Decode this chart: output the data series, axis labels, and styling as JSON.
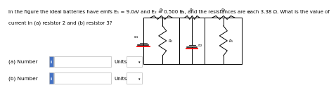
{
  "title_line1": "In the figure the ideal batteries have emfs E₁ = 9.0 V and E₂ = 0.500 E₁, and the resistances are each 3.38 Ω. What is the value of",
  "title_line2": "current in (a) resistor 2 and (b) resistor 3?",
  "label_a": "(a) Number",
  "label_b": "(b) Number",
  "units_text": "Units",
  "input_color": "#4472c4",
  "input_text": "i",
  "bg_color": "#ffffff",
  "text_color": "#000000",
  "font_size_title": 5.0,
  "font_size_label": 5.2,
  "circuit_L": 0.565,
  "circuit_R": 0.975,
  "circuit_T": 0.88,
  "circuit_B": 0.3,
  "circuit_M1": 0.715,
  "circuit_M2": 0.82
}
